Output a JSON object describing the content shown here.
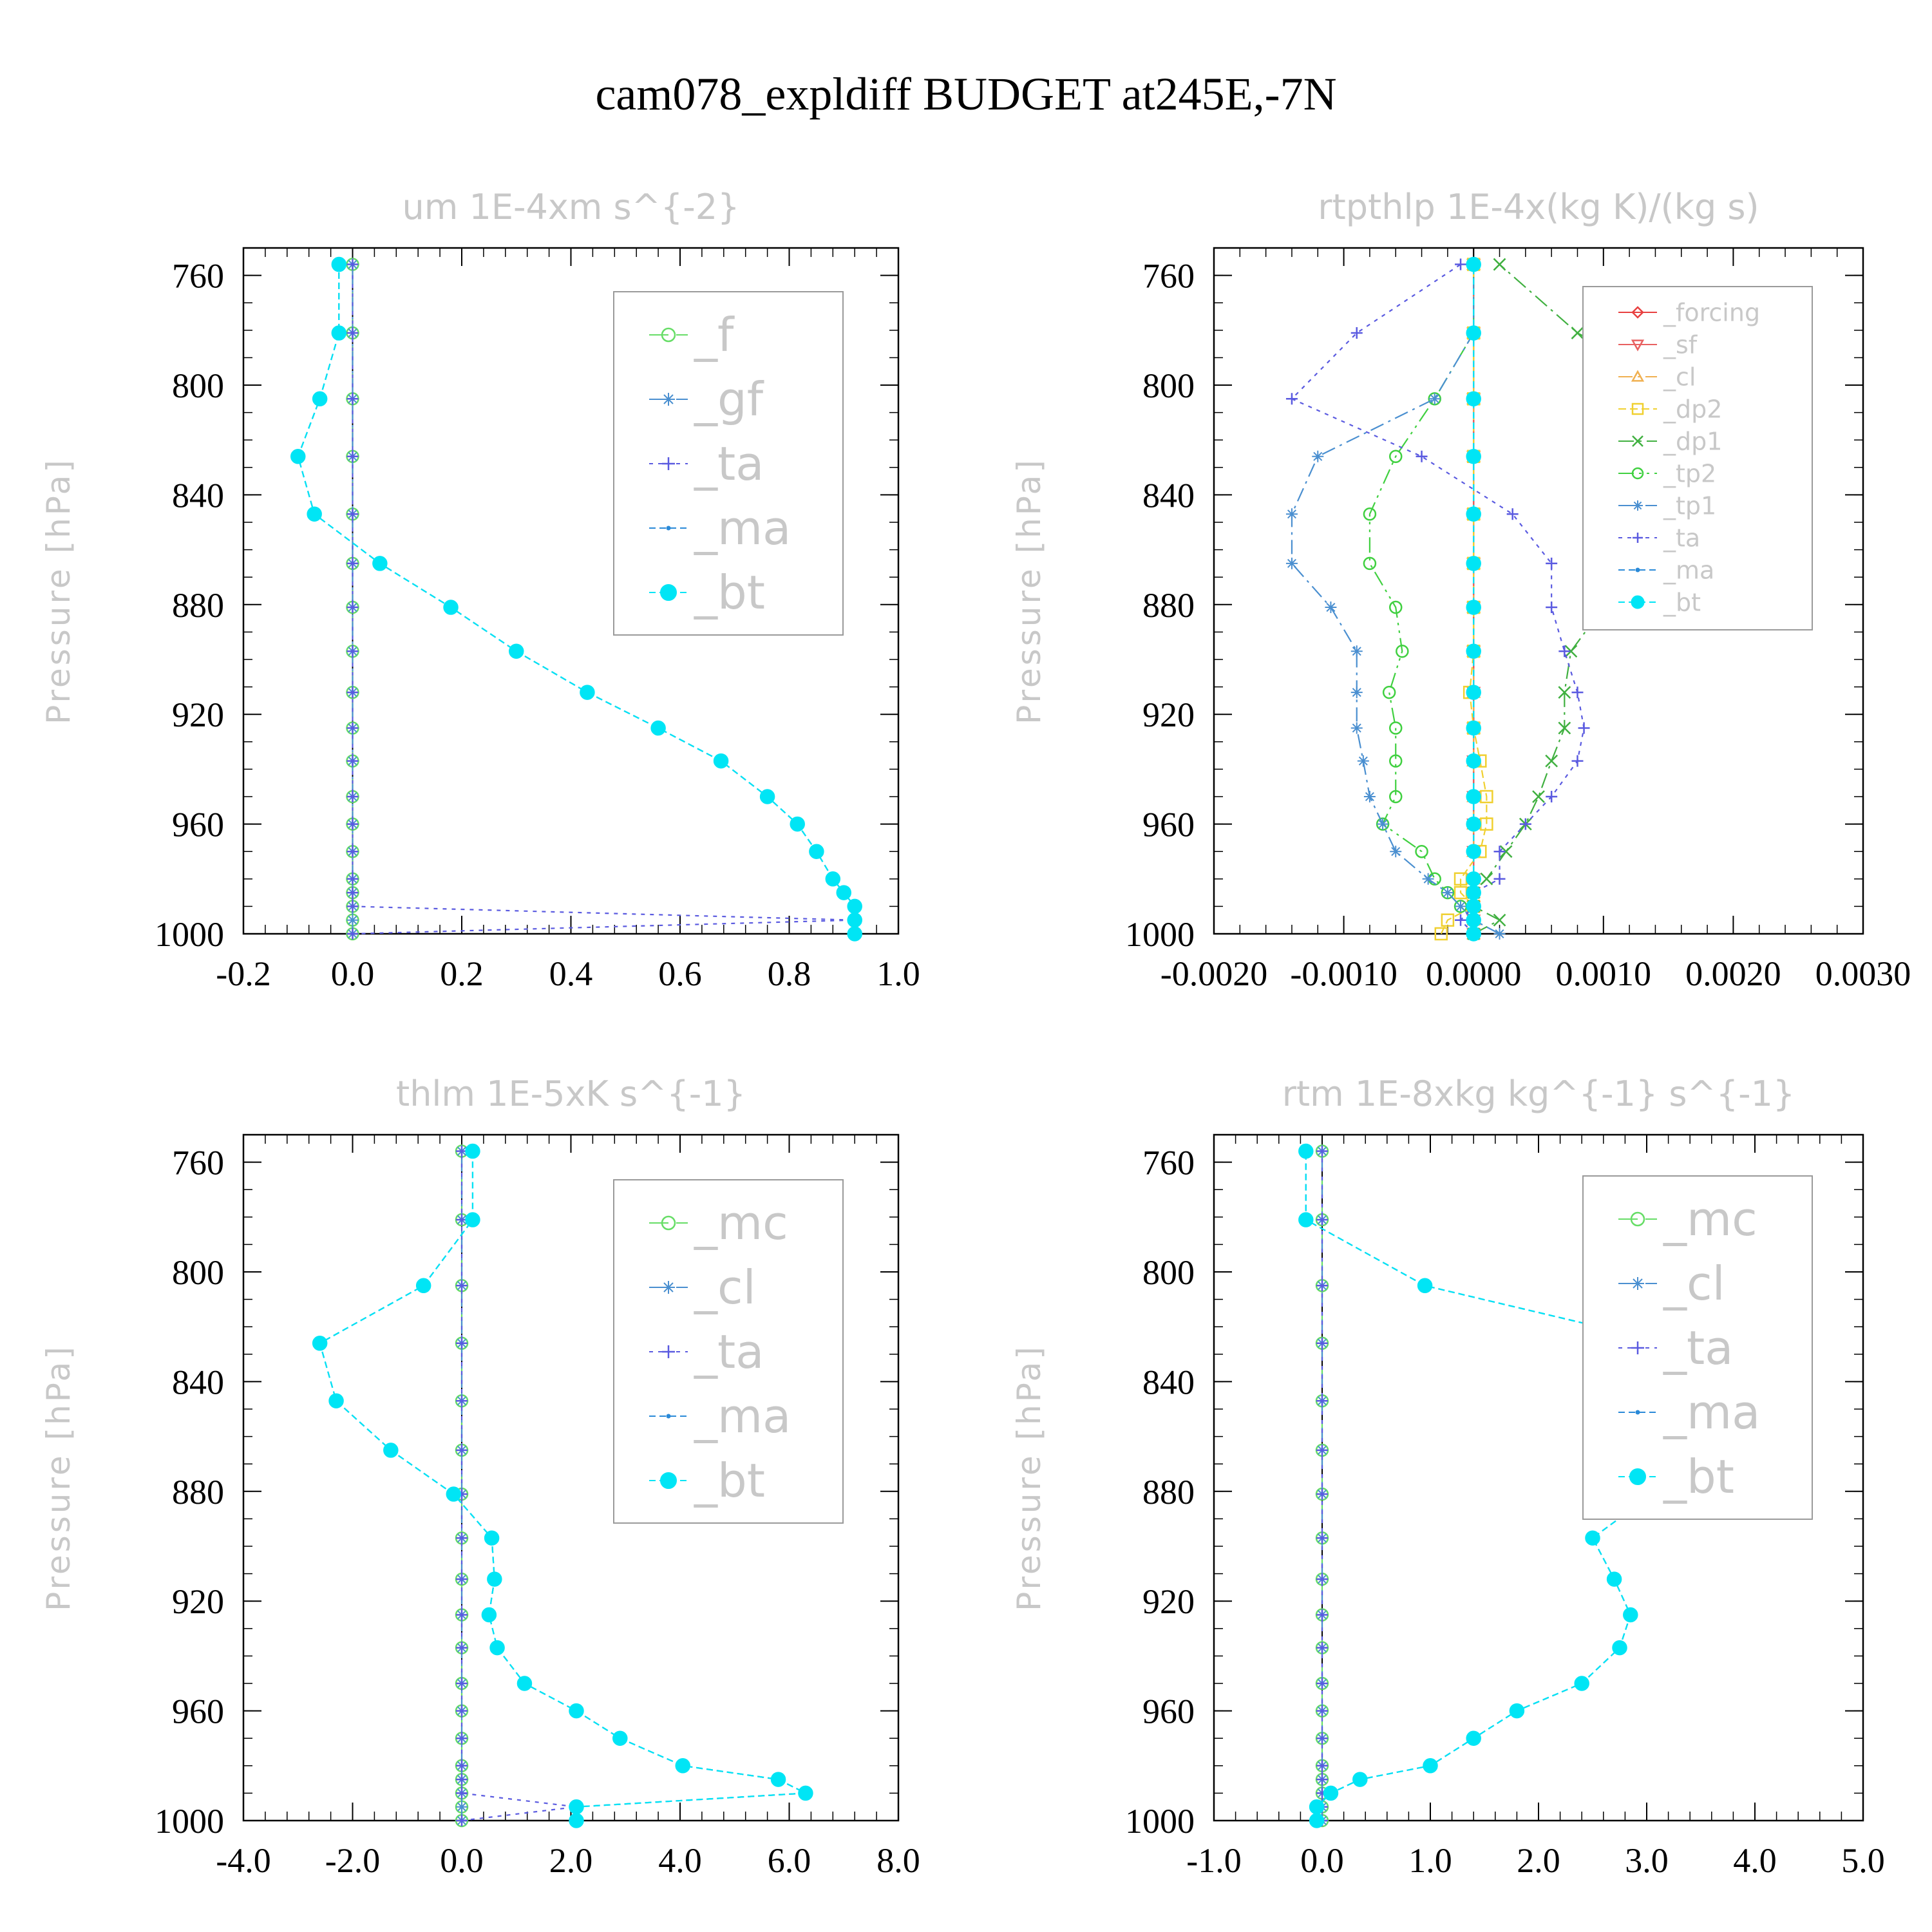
{
  "title": "cam078_expldiff  BUDGET at245E,-7N",
  "pressure_levels": [
    1000,
    995,
    990,
    985,
    980,
    970,
    960,
    950,
    937,
    925,
    912,
    897,
    881,
    865,
    847,
    826,
    805,
    781,
    756
  ],
  "chart_data": [
    {
      "type": "line",
      "title": "um   1E-4xm s^{-2}",
      "ylabel": "Pressure [hPa]",
      "xlim": [
        -0.2,
        1.0
      ],
      "ylim": [
        1000,
        750
      ],
      "xticks": [
        "-0.2",
        "0.0",
        "0.2",
        "0.4",
        "0.6",
        "0.8",
        "1.0"
      ],
      "yticks": [
        "760",
        "800",
        "840",
        "880",
        "920",
        "960",
        "1000"
      ],
      "series": [
        {
          "name": "_f",
          "color": "#66dd66",
          "marker": "circle",
          "values": [
            0,
            0,
            0,
            0,
            0,
            0,
            0,
            0,
            0,
            0,
            0,
            0,
            0,
            0,
            0,
            0,
            0,
            0,
            0
          ]
        },
        {
          "name": "_gf",
          "color": "#4a8fd0",
          "marker": "star",
          "values": [
            0,
            0,
            0,
            0,
            0,
            0,
            0,
            0,
            0,
            0,
            0,
            0,
            0,
            0,
            0,
            0,
            0,
            0,
            0
          ]
        },
        {
          "name": "_ta",
          "color": "#5a5ae0",
          "marker": "plus",
          "values": [
            0,
            0.92,
            0,
            0,
            0,
            0,
            0,
            0,
            0,
            0,
            0,
            0,
            0,
            0,
            0,
            0,
            0,
            0,
            0
          ]
        },
        {
          "name": "_ma",
          "color": "#2a8ad8",
          "marker": "dot",
          "values": [
            0.92,
            0.92,
            0.92,
            0.9,
            0.88,
            0.85,
            0.815,
            0.76,
            0.675,
            0.56,
            0.43,
            0.3,
            0.18,
            0.05,
            -0.07,
            -0.1,
            -0.06,
            -0.025,
            -0.025
          ]
        },
        {
          "name": "_bt",
          "color": "#00e5f5",
          "marker": "bigdot",
          "values": [
            0.92,
            0.92,
            0.92,
            0.9,
            0.88,
            0.85,
            0.815,
            0.76,
            0.675,
            0.56,
            0.43,
            0.3,
            0.18,
            0.05,
            -0.07,
            -0.1,
            -0.06,
            -0.025,
            -0.025
          ]
        }
      ]
    },
    {
      "type": "line",
      "title": "rtpthlp   1E-4x(kg K)/(kg s)",
      "ylabel": "Pressure [hPa]",
      "xlim": [
        -0.002,
        0.003
      ],
      "ylim": [
        1000,
        750
      ],
      "xticks": [
        "-0.0020",
        "-0.0010",
        "0.0000",
        "0.0010",
        "0.0020",
        "0.0030"
      ],
      "yticks": [
        "760",
        "800",
        "840",
        "880",
        "920",
        "960",
        "1000"
      ],
      "series": [
        {
          "name": "_forcing",
          "color": "#e84040",
          "marker": "diamond",
          "values": [
            0,
            0,
            0,
            0,
            0,
            0,
            0,
            0,
            0,
            0,
            0,
            0,
            0,
            0,
            0,
            0,
            0,
            0,
            0
          ]
        },
        {
          "name": "_sf",
          "color": "#e86060",
          "marker": "triangle-down",
          "values": [
            0,
            0,
            0,
            0,
            0,
            0,
            0,
            0,
            0,
            0,
            0,
            0,
            0,
            0,
            0,
            0,
            0,
            0,
            0
          ]
        },
        {
          "name": "_cl",
          "color": "#f0b050",
          "marker": "triangle",
          "values": [
            0,
            0,
            0,
            0,
            0,
            0,
            0,
            0,
            0,
            0,
            0,
            0,
            0,
            0,
            0,
            0,
            0,
            0,
            0
          ]
        },
        {
          "name": "_dp2",
          "color": "#f0d030",
          "marker": "square",
          "values": [
            -0.00025,
            -0.0002,
            0,
            -0.0001,
            -0.0001,
            5e-05,
            0.0001,
            0.0001,
            5e-05,
            0,
            -3e-05,
            0,
            0,
            0,
            0,
            0,
            0,
            0,
            0
          ]
        },
        {
          "name": "_dp1",
          "color": "#40b040",
          "marker": "x",
          "values": [
            0,
            0.0002,
            0,
            0,
            0.0001,
            0.00025,
            0.0004,
            0.0005,
            0.0006,
            0.0007,
            0.0007,
            0.00075,
            0.001,
            0.0014,
            0.002,
            0.0025,
            0.0018,
            0.0008,
            0.0002
          ]
        },
        {
          "name": "_tp2",
          "color": "#40d040",
          "marker": "circle",
          "values": [
            0,
            0,
            -0.0001,
            -0.0002,
            -0.0003,
            -0.0004,
            -0.0007,
            -0.0006,
            -0.0006,
            -0.0006,
            -0.00065,
            -0.00055,
            -0.0006,
            -0.0008,
            -0.0008,
            -0.0006,
            -0.0003,
            0,
            0
          ]
        },
        {
          "name": "_tp1",
          "color": "#4a8fd0",
          "marker": "star",
          "values": [
            0.0002,
            0,
            -0.0001,
            -0.0002,
            -0.00035,
            -0.0006,
            -0.0007,
            -0.0008,
            -0.00085,
            -0.0009,
            -0.0009,
            -0.0009,
            -0.0011,
            -0.0014,
            -0.0014,
            -0.0012,
            -0.0003,
            0,
            0
          ]
        },
        {
          "name": "_ta",
          "color": "#5a5ae0",
          "marker": "plus",
          "values": [
            0,
            -0.0001,
            0,
            0,
            0.0002,
            0.0002,
            0.0004,
            0.0006,
            0.0008,
            0.00085,
            0.0008,
            0.0007,
            0.0006,
            0.0006,
            0.0003,
            -0.0004,
            -0.0014,
            -0.0009,
            -0.0001
          ]
        },
        {
          "name": "_ma",
          "color": "#2a8ad8",
          "marker": "dot",
          "values": [
            0,
            0,
            0,
            0,
            0,
            0,
            0,
            0,
            0,
            0,
            0,
            0,
            0,
            0,
            0,
            0,
            0,
            0,
            0
          ]
        },
        {
          "name": "_bt",
          "color": "#00e5f5",
          "marker": "bigdot",
          "values": [
            0,
            0,
            0,
            0,
            0,
            0,
            0,
            0,
            0,
            0,
            0,
            0,
            0,
            0,
            0,
            0,
            0,
            0,
            0
          ]
        }
      ]
    },
    {
      "type": "line",
      "title": "thlm   1E-5xK s^{-1}",
      "ylabel": "Pressure [hPa]",
      "xlim": [
        -4.0,
        8.0
      ],
      "ylim": [
        1000,
        750
      ],
      "xticks": [
        "-4.0",
        "-2.0",
        "0.0",
        "2.0",
        "4.0",
        "6.0",
        "8.0"
      ],
      "yticks": [
        "760",
        "800",
        "840",
        "880",
        "920",
        "960",
        "1000"
      ],
      "series": [
        {
          "name": "_mc",
          "color": "#66dd66",
          "marker": "circle",
          "values": [
            0,
            0,
            0,
            0,
            0,
            0,
            0,
            0,
            0,
            0,
            0,
            0,
            0,
            0,
            0,
            0,
            0,
            0,
            0
          ]
        },
        {
          "name": "_cl",
          "color": "#4a8fd0",
          "marker": "star",
          "values": [
            0,
            0,
            0,
            0,
            0,
            0,
            0,
            0,
            0,
            0,
            0,
            0,
            0,
            0,
            0,
            0,
            0,
            0,
            0
          ]
        },
        {
          "name": "_ta",
          "color": "#5a5ae0",
          "marker": "plus",
          "values": [
            0,
            2.1,
            0,
            0,
            0,
            0,
            0,
            0,
            0,
            0,
            0,
            0,
            0,
            0,
            0,
            0,
            0,
            0,
            0
          ]
        },
        {
          "name": "_ma",
          "color": "#2a8ad8",
          "marker": "dot",
          "values": [
            2.1,
            2.1,
            6.3,
            5.8,
            4.05,
            2.9,
            2.1,
            1.15,
            0.65,
            0.5,
            0.6,
            0.55,
            -0.15,
            -1.3,
            -2.3,
            -2.6,
            -0.7,
            0.2,
            0.2
          ]
        },
        {
          "name": "_bt",
          "color": "#00e5f5",
          "marker": "bigdot",
          "values": [
            2.1,
            2.1,
            6.3,
            5.8,
            4.05,
            2.9,
            2.1,
            1.15,
            0.65,
            0.5,
            0.6,
            0.55,
            -0.15,
            -1.3,
            -2.3,
            -2.6,
            -0.7,
            0.2,
            0.2
          ]
        }
      ]
    },
    {
      "type": "line",
      "title": "rtm   1E-8xkg kg^{-1} s^{-1}",
      "ylabel": "Pressure [hPa]",
      "xlim": [
        -1.0,
        5.0
      ],
      "ylim": [
        1000,
        750
      ],
      "xticks": [
        "-1.0",
        "0.0",
        "1.0",
        "2.0",
        "3.0",
        "4.0",
        "5.0"
      ],
      "yticks": [
        "760",
        "800",
        "840",
        "880",
        "920",
        "960",
        "1000"
      ],
      "series": [
        {
          "name": "_mc",
          "color": "#66dd66",
          "marker": "circle",
          "values": [
            0,
            0,
            0,
            0,
            0,
            0,
            0,
            0,
            0,
            0,
            0,
            0,
            0,
            0,
            0,
            0,
            0,
            0,
            0
          ]
        },
        {
          "name": "_cl",
          "color": "#4a8fd0",
          "marker": "star",
          "values": [
            0,
            0,
            0,
            0,
            0,
            0,
            0,
            0,
            0,
            0,
            0,
            0,
            0,
            0,
            0,
            0,
            0,
            0,
            0
          ]
        },
        {
          "name": "_ta",
          "color": "#5a5ae0",
          "marker": "plus",
          "values": [
            0,
            0,
            0,
            0,
            0,
            0,
            0,
            0,
            0,
            0,
            0,
            0,
            0,
            0,
            0,
            0,
            0,
            0,
            0
          ]
        },
        {
          "name": "_ma",
          "color": "#2a8ad8",
          "marker": "dot",
          "values": [
            -0.05,
            -0.05,
            0.08,
            0.35,
            1.0,
            1.4,
            1.8,
            2.4,
            2.75,
            2.85,
            2.7,
            2.5,
            3.05,
            4.05,
            4.15,
            3.2,
            0.95,
            -0.15,
            -0.15
          ]
        },
        {
          "name": "_bt",
          "color": "#00e5f5",
          "marker": "bigdot",
          "values": [
            -0.05,
            -0.05,
            0.08,
            0.35,
            1.0,
            1.4,
            1.8,
            2.4,
            2.75,
            2.85,
            2.7,
            2.5,
            3.05,
            4.05,
            4.15,
            3.2,
            0.95,
            -0.15,
            -0.15
          ]
        }
      ]
    }
  ]
}
